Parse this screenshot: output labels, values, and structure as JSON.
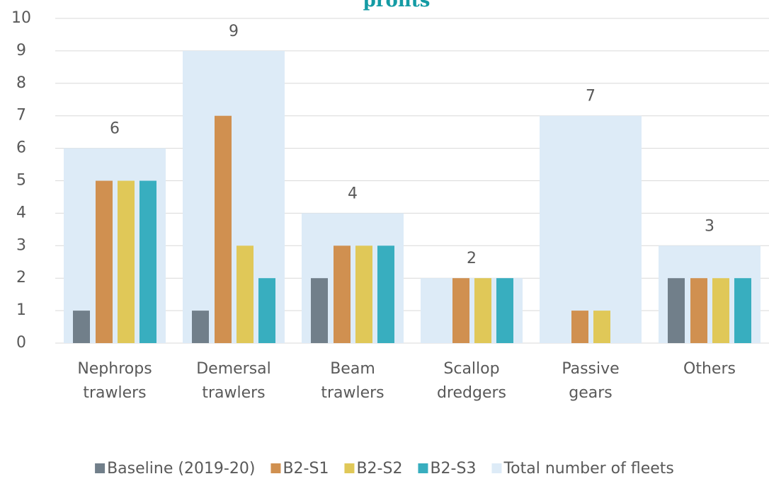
{
  "chart_data": {
    "type": "bar",
    "title": "profits",
    "categories": [
      "Nephrops trawlers",
      "Demersal trawlers",
      "Beam trawlers",
      "Scallop dredgers",
      "Passive gears",
      "Others"
    ],
    "series": [
      {
        "name": "Baseline (2019-20)",
        "color": "#717f8a",
        "values": [
          1,
          1,
          2,
          0,
          0,
          2
        ]
      },
      {
        "name": "B2-S1",
        "color": "#d09050",
        "values": [
          5,
          7,
          3,
          2,
          1,
          2
        ]
      },
      {
        "name": "B2-S2",
        "color": "#e0c858",
        "values": [
          5,
          3,
          3,
          2,
          1,
          2
        ]
      },
      {
        "name": "B2-S3",
        "color": "#38aebf",
        "values": [
          5,
          2,
          3,
          2,
          0,
          2
        ]
      },
      {
        "name": "Total number of fleets",
        "color": "#ddebf7",
        "values": [
          6,
          9,
          4,
          2,
          7,
          3
        ]
      }
    ],
    "ylim": [
      0,
      10
    ],
    "yticks": [
      0,
      1,
      2,
      3,
      4,
      5,
      6,
      7,
      8,
      9,
      10
    ],
    "grid": true,
    "legend": "bottom"
  }
}
